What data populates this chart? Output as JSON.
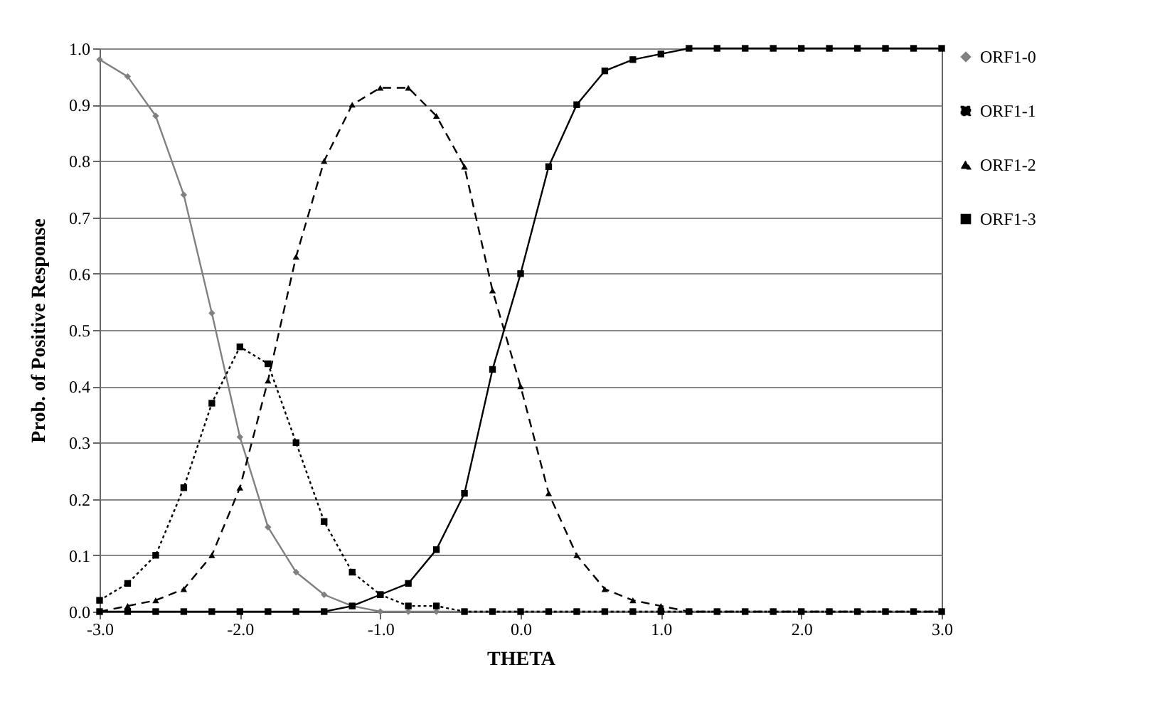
{
  "chart_data": {
    "type": "line",
    "xlabel": "THETA",
    "ylabel": "Prob. of Positive Response",
    "x": [
      -3.0,
      -2.8,
      -2.6,
      -2.4,
      -2.2,
      -2.0,
      -1.8,
      -1.6,
      -1.4,
      -1.2,
      -1.0,
      -0.8,
      -0.6,
      -0.4,
      -0.2,
      0.0,
      0.2,
      0.4,
      0.6,
      0.8,
      1.0,
      1.2,
      1.4,
      1.6,
      1.8,
      2.0,
      2.2,
      2.4,
      2.6,
      2.8,
      3.0
    ],
    "series": [
      {
        "name": "ORF1-0",
        "color": "#808080",
        "marker": "diamond",
        "line_style": "solid",
        "values": [
          0.98,
          0.95,
          0.88,
          0.74,
          0.53,
          0.31,
          0.15,
          0.07,
          0.03,
          0.01,
          0.0,
          0.0,
          0.0,
          0.0,
          0.0,
          0.0,
          0.0,
          0.0,
          0.0,
          0.0,
          0.0,
          0.0,
          0.0,
          0.0,
          0.0,
          0.0,
          0.0,
          0.0,
          0.0,
          0.0,
          0.0
        ]
      },
      {
        "name": "ORF1-1",
        "color": "#000000",
        "marker": "square",
        "line_style": "dotted",
        "values": [
          0.02,
          0.05,
          0.1,
          0.22,
          0.37,
          0.47,
          0.44,
          0.3,
          0.16,
          0.07,
          0.03,
          0.01,
          0.01,
          0.0,
          0.0,
          0.0,
          0.0,
          0.0,
          0.0,
          0.0,
          0.0,
          0.0,
          0.0,
          0.0,
          0.0,
          0.0,
          0.0,
          0.0,
          0.0,
          0.0,
          0.0
        ]
      },
      {
        "name": "ORF1-2",
        "color": "#000000",
        "marker": "triangle",
        "line_style": "dashed",
        "values": [
          0.0,
          0.01,
          0.02,
          0.04,
          0.1,
          0.22,
          0.41,
          0.63,
          0.8,
          0.9,
          0.93,
          0.93,
          0.88,
          0.79,
          0.57,
          0.4,
          0.21,
          0.1,
          0.04,
          0.02,
          0.01,
          0.0,
          0.0,
          0.0,
          0.0,
          0.0,
          0.0,
          0.0,
          0.0,
          0.0,
          0.0
        ]
      },
      {
        "name": "ORF1-3",
        "color": "#000000",
        "marker": "square",
        "line_style": "solid",
        "values": [
          0.0,
          0.0,
          0.0,
          0.0,
          0.0,
          0.0,
          0.0,
          0.0,
          0.0,
          0.01,
          0.03,
          0.05,
          0.11,
          0.21,
          0.43,
          0.6,
          0.79,
          0.9,
          0.96,
          0.98,
          0.99,
          1.0,
          1.0,
          1.0,
          1.0,
          1.0,
          1.0,
          1.0,
          1.0,
          1.0,
          1.0
        ]
      }
    ],
    "xlim": [
      -3.0,
      3.0
    ],
    "ylim": [
      0.0,
      1.0
    ],
    "xticks": [
      {
        "value": -3,
        "label": "-3.0"
      },
      {
        "value": -2,
        "label": "-2.0"
      },
      {
        "value": -1,
        "label": "-1.0"
      },
      {
        "value": 0,
        "label": "0.0"
      },
      {
        "value": 1,
        "label": "1.0"
      },
      {
        "value": 2,
        "label": "2.0"
      },
      {
        "value": 3,
        "label": "3.0"
      }
    ],
    "yticks": [
      {
        "value": 0,
        "label": "0.0"
      },
      {
        "value": 0.1,
        "label": "0.1"
      },
      {
        "value": 0.2,
        "label": "0.2"
      },
      {
        "value": 0.3,
        "label": "0.3"
      },
      {
        "value": 0.4,
        "label": "0.4"
      },
      {
        "value": 0.5,
        "label": "0.5"
      },
      {
        "value": 0.6,
        "label": "0.6"
      },
      {
        "value": 0.7,
        "label": "0.7"
      },
      {
        "value": 0.8,
        "label": "0.8"
      },
      {
        "value": 0.9,
        "label": "0.9"
      },
      {
        "value": 1,
        "label": "1.0"
      }
    ],
    "grid": "y",
    "legend": "right"
  }
}
